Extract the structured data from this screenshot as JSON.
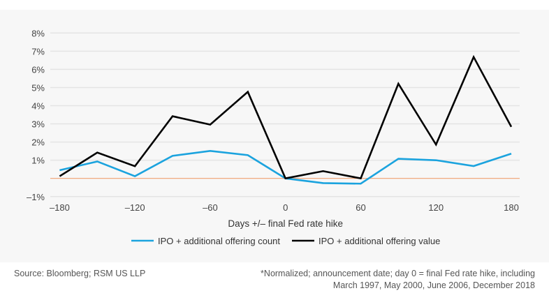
{
  "chart_data": {
    "type": "line",
    "xlabel": "Days +/– final Fed rate hike",
    "ylabel": "",
    "x": [
      -180,
      -150,
      -120,
      -90,
      -60,
      -30,
      0,
      30,
      60,
      90,
      120,
      150,
      180
    ],
    "xticks": [
      -180,
      -120,
      -60,
      0,
      60,
      120,
      180
    ],
    "xtick_labels": [
      "–180",
      "–120",
      "–60",
      "0",
      "60",
      "120",
      "180"
    ],
    "xlim": [
      -180,
      180
    ],
    "yticks": [
      8,
      7,
      6,
      5,
      4,
      3,
      2,
      1,
      -1
    ],
    "ytick_labels": [
      "8%",
      "7%",
      "6%",
      "5%",
      "4%",
      "3%",
      "2%",
      "1%",
      "–1%"
    ],
    "ylim": [
      -1,
      8
    ],
    "grid": true,
    "zero_line_color": "#f0a070",
    "legend_position": "bottom",
    "series": [
      {
        "name": "IPO + additional offering count",
        "color": "#1ba3de",
        "values": [
          0.45,
          0.93,
          0.12,
          1.24,
          1.51,
          1.28,
          0,
          -0.26,
          -0.29,
          1.08,
          1.0,
          0.68,
          1.36
        ]
      },
      {
        "name": "IPO + additional offering value",
        "color": "#000000",
        "values": [
          0.12,
          1.42,
          0.67,
          3.42,
          2.96,
          4.76,
          0,
          0.4,
          0,
          5.21,
          1.86,
          6.68,
          2.84
        ]
      }
    ]
  },
  "footer": {
    "source": "Source: Bloomberg; RSM US LLP",
    "note_line1": "*Normalized; announcement date; day 0 = final Fed rate hike, including",
    "note_line2": "March 1997, May 2000, June 2006, December 2018"
  }
}
